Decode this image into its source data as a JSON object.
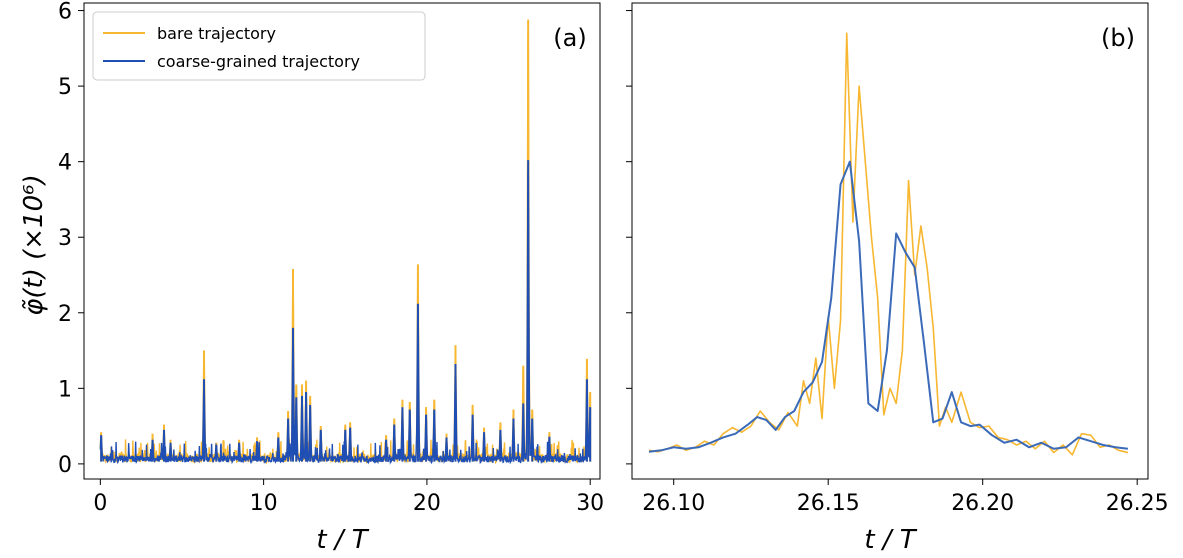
{
  "chart_data": [
    {
      "type": "line",
      "panel_label": "(a)",
      "xlabel": "t / T",
      "ylabel": "φ̃(t)  (×10⁶)",
      "xlim": [
        -1,
        30.6
      ],
      "ylim": [
        -0.2,
        6.1
      ],
      "xticks": [
        0,
        10,
        20,
        30
      ],
      "xtick_labels": [
        "0",
        "10",
        "20",
        "30"
      ],
      "yticks": [
        0,
        1,
        2,
        3,
        4,
        5,
        6
      ],
      "ytick_labels": [
        "0",
        "1",
        "2",
        "3",
        "4",
        "5",
        "6"
      ],
      "grid": false,
      "legend": {
        "placement": "top-left",
        "entries": [
          "bare trajectory",
          "coarse-grained trajectory"
        ]
      },
      "series": [
        {
          "name": "bare trajectory",
          "color": "#f7b731",
          "peaks": [
            [
              0.05,
              0.42
            ],
            [
              3.2,
              0.4
            ],
            [
              3.9,
              0.52
            ],
            [
              4.3,
              0.32
            ],
            [
              6.35,
              1.5
            ],
            [
              7.1,
              0.28
            ],
            [
              8.5,
              0.32
            ],
            [
              9.6,
              0.35
            ],
            [
              10.9,
              0.42
            ],
            [
              11.5,
              0.7
            ],
            [
              11.8,
              2.58
            ],
            [
              12.0,
              1.05
            ],
            [
              12.35,
              1.05
            ],
            [
              12.6,
              1.1
            ],
            [
              12.85,
              0.9
            ],
            [
              13.5,
              0.5
            ],
            [
              15.0,
              0.52
            ],
            [
              15.3,
              0.55
            ],
            [
              17.5,
              0.38
            ],
            [
              18.0,
              0.6
            ],
            [
              18.5,
              0.85
            ],
            [
              18.95,
              0.82
            ],
            [
              19.45,
              2.64
            ],
            [
              19.95,
              0.75
            ],
            [
              20.45,
              0.85
            ],
            [
              21.2,
              0.4
            ],
            [
              21.75,
              1.57
            ],
            [
              22.8,
              0.78
            ],
            [
              23.5,
              0.48
            ],
            [
              24.5,
              0.55
            ],
            [
              25.3,
              0.72
            ],
            [
              25.9,
              1.3
            ],
            [
              26.2,
              5.88
            ],
            [
              26.45,
              0.72
            ],
            [
              27.5,
              0.42
            ],
            [
              29.8,
              1.39
            ],
            [
              30.0,
              0.95
            ]
          ]
        },
        {
          "name": "coarse-grained trajectory",
          "color": "#1f4eb4",
          "peaks": [
            [
              0.05,
              0.38
            ],
            [
              3.2,
              0.32
            ],
            [
              3.9,
              0.45
            ],
            [
              4.3,
              0.28
            ],
            [
              6.35,
              1.12
            ],
            [
              7.1,
              0.25
            ],
            [
              8.5,
              0.28
            ],
            [
              9.6,
              0.3
            ],
            [
              10.9,
              0.35
            ],
            [
              11.5,
              0.6
            ],
            [
              11.8,
              1.8
            ],
            [
              12.0,
              0.88
            ],
            [
              12.35,
              0.9
            ],
            [
              12.6,
              0.95
            ],
            [
              12.85,
              0.78
            ],
            [
              13.5,
              0.45
            ],
            [
              15.0,
              0.45
            ],
            [
              15.3,
              0.48
            ],
            [
              17.5,
              0.32
            ],
            [
              18.0,
              0.52
            ],
            [
              18.5,
              0.75
            ],
            [
              18.95,
              0.72
            ],
            [
              19.45,
              2.12
            ],
            [
              19.95,
              0.65
            ],
            [
              20.45,
              0.72
            ],
            [
              21.2,
              0.35
            ],
            [
              21.75,
              1.32
            ],
            [
              22.8,
              0.65
            ],
            [
              23.5,
              0.42
            ],
            [
              24.5,
              0.45
            ],
            [
              25.3,
              0.6
            ],
            [
              25.9,
              0.8
            ],
            [
              26.2,
              4.02
            ],
            [
              26.45,
              0.6
            ],
            [
              27.5,
              0.36
            ],
            [
              29.8,
              1.12
            ],
            [
              30.0,
              0.75
            ]
          ]
        }
      ]
    },
    {
      "type": "line",
      "panel_label": "(b)",
      "xlabel": "t / T",
      "ylabel": "",
      "xlim": [
        26.0865,
        26.2535
      ],
      "ylim": [
        -0.2,
        6.1
      ],
      "xticks": [
        26.1,
        26.15,
        26.2,
        26.25
      ],
      "xtick_labels": [
        "26.10",
        "26.15",
        "26.20",
        "26.25"
      ],
      "yticks": [
        0,
        1,
        2,
        3,
        4,
        5,
        6
      ],
      "ytick_labels": [],
      "grid": false,
      "series": [
        {
          "name": "bare trajectory",
          "color": "#f7b731",
          "x": [
            26.092,
            26.095,
            26.098,
            26.101,
            26.104,
            26.107,
            26.11,
            26.113,
            26.116,
            26.119,
            26.122,
            26.125,
            26.128,
            26.131,
            26.134,
            26.137,
            26.14,
            26.142,
            26.144,
            26.146,
            26.148,
            26.15,
            26.152,
            26.154,
            26.156,
            26.158,
            26.16,
            26.162,
            26.164,
            26.166,
            26.168,
            26.17,
            26.172,
            26.174,
            26.176,
            26.178,
            26.18,
            26.182,
            26.184,
            26.186,
            26.188,
            26.19,
            26.193,
            26.196,
            26.199,
            26.202,
            26.205,
            26.208,
            26.211,
            26.214,
            26.217,
            26.22,
            26.223,
            26.226,
            26.229,
            26.232,
            26.235,
            26.238,
            26.241,
            26.244,
            26.247
          ],
          "y": [
            0.18,
            0.16,
            0.2,
            0.25,
            0.18,
            0.22,
            0.3,
            0.25,
            0.4,
            0.48,
            0.42,
            0.5,
            0.7,
            0.55,
            0.45,
            0.68,
            0.5,
            1.1,
            0.8,
            1.4,
            0.6,
            1.95,
            1.0,
            1.9,
            5.7,
            3.2,
            5.0,
            4.0,
            3.0,
            2.2,
            0.65,
            1.0,
            0.8,
            1.5,
            3.75,
            2.5,
            3.15,
            2.6,
            1.8,
            0.5,
            0.75,
            0.55,
            0.95,
            0.55,
            0.48,
            0.5,
            0.35,
            0.32,
            0.25,
            0.3,
            0.2,
            0.3,
            0.15,
            0.25,
            0.12,
            0.4,
            0.38,
            0.22,
            0.25,
            0.18,
            0.15
          ]
        },
        {
          "name": "coarse-grained trajectory",
          "color": "#3b6ab8",
          "x": [
            26.092,
            26.096,
            26.1,
            26.104,
            26.108,
            26.112,
            26.116,
            26.12,
            26.124,
            26.127,
            26.13,
            26.133,
            26.136,
            26.139,
            26.142,
            26.145,
            26.148,
            26.151,
            26.154,
            26.157,
            26.16,
            26.163,
            26.166,
            26.169,
            26.172,
            26.175,
            26.178,
            26.181,
            26.184,
            26.187,
            26.19,
            26.193,
            26.196,
            26.199,
            26.203,
            26.207,
            26.211,
            26.215,
            26.219,
            26.223,
            26.227,
            26.231,
            26.235,
            26.239,
            26.243,
            26.247
          ],
          "y": [
            0.16,
            0.18,
            0.22,
            0.2,
            0.22,
            0.28,
            0.35,
            0.4,
            0.52,
            0.62,
            0.58,
            0.45,
            0.62,
            0.7,
            0.95,
            1.08,
            1.35,
            2.2,
            3.7,
            4.0,
            2.95,
            0.8,
            0.7,
            1.5,
            3.05,
            2.8,
            2.6,
            1.6,
            0.55,
            0.6,
            0.95,
            0.55,
            0.5,
            0.52,
            0.38,
            0.28,
            0.32,
            0.22,
            0.28,
            0.2,
            0.22,
            0.35,
            0.3,
            0.25,
            0.22,
            0.2
          ]
        }
      ]
    }
  ]
}
